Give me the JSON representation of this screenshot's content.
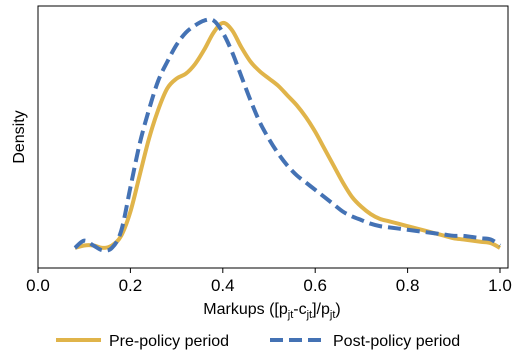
{
  "chart_data": {
    "type": "line",
    "title": "",
    "xlabel": "Markups ([p_jt-c_jt]/p_jt)",
    "xlabel_parts": {
      "main": "Markups ([p",
      "sub1": "jt",
      "mid1": "-c",
      "sub2": "jt",
      "mid2": "]/p",
      "sub3": "jt",
      "end": ")"
    },
    "ylabel": "Density",
    "xlim": [
      0.0,
      1.0
    ],
    "ylim": [
      0.0,
      1.05
    ],
    "xticks": [
      "0.0",
      "0.2",
      "0.4",
      "0.6",
      "0.8",
      "1.0"
    ],
    "y_tick_labels_shown": false,
    "grid": false,
    "legend_position": "bottom",
    "series": [
      {
        "name": "Pre-policy period",
        "color": "#E0B44A",
        "style": "solid",
        "points": [
          [
            0.08,
            0.05
          ],
          [
            0.1,
            0.06
          ],
          [
            0.12,
            0.06
          ],
          [
            0.14,
            0.05
          ],
          [
            0.16,
            0.06
          ],
          [
            0.18,
            0.1
          ],
          [
            0.2,
            0.2
          ],
          [
            0.22,
            0.35
          ],
          [
            0.24,
            0.5
          ],
          [
            0.26,
            0.62
          ],
          [
            0.28,
            0.71
          ],
          [
            0.3,
            0.75
          ],
          [
            0.32,
            0.77
          ],
          [
            0.34,
            0.81
          ],
          [
            0.36,
            0.87
          ],
          [
            0.38,
            0.94
          ],
          [
            0.4,
            0.98
          ],
          [
            0.42,
            0.95
          ],
          [
            0.44,
            0.88
          ],
          [
            0.46,
            0.82
          ],
          [
            0.48,
            0.78
          ],
          [
            0.5,
            0.75
          ],
          [
            0.52,
            0.72
          ],
          [
            0.54,
            0.68
          ],
          [
            0.56,
            0.64
          ],
          [
            0.58,
            0.59
          ],
          [
            0.6,
            0.53
          ],
          [
            0.62,
            0.46
          ],
          [
            0.64,
            0.39
          ],
          [
            0.66,
            0.32
          ],
          [
            0.68,
            0.26
          ],
          [
            0.7,
            0.22
          ],
          [
            0.72,
            0.19
          ],
          [
            0.74,
            0.17
          ],
          [
            0.76,
            0.16
          ],
          [
            0.78,
            0.15
          ],
          [
            0.8,
            0.14
          ],
          [
            0.82,
            0.13
          ],
          [
            0.84,
            0.12
          ],
          [
            0.86,
            0.11
          ],
          [
            0.88,
            0.1
          ],
          [
            0.9,
            0.09
          ],
          [
            0.92,
            0.085
          ],
          [
            0.94,
            0.08
          ],
          [
            0.96,
            0.075
          ],
          [
            0.98,
            0.07
          ],
          [
            1.0,
            0.05
          ]
        ]
      },
      {
        "name": "Post-policy period",
        "color": "#4472B4",
        "style": "dashed",
        "points": [
          [
            0.08,
            0.05
          ],
          [
            0.1,
            0.08
          ],
          [
            0.12,
            0.06
          ],
          [
            0.14,
            0.04
          ],
          [
            0.16,
            0.05
          ],
          [
            0.18,
            0.12
          ],
          [
            0.2,
            0.3
          ],
          [
            0.22,
            0.48
          ],
          [
            0.24,
            0.62
          ],
          [
            0.26,
            0.74
          ],
          [
            0.28,
            0.82
          ],
          [
            0.3,
            0.89
          ],
          [
            0.32,
            0.94
          ],
          [
            0.34,
            0.97
          ],
          [
            0.36,
            0.99
          ],
          [
            0.38,
            0.99
          ],
          [
            0.4,
            0.94
          ],
          [
            0.42,
            0.86
          ],
          [
            0.44,
            0.76
          ],
          [
            0.46,
            0.66
          ],
          [
            0.48,
            0.57
          ],
          [
            0.5,
            0.5
          ],
          [
            0.52,
            0.44
          ],
          [
            0.54,
            0.39
          ],
          [
            0.56,
            0.35
          ],
          [
            0.58,
            0.32
          ],
          [
            0.6,
            0.29
          ],
          [
            0.62,
            0.26
          ],
          [
            0.64,
            0.23
          ],
          [
            0.66,
            0.2
          ],
          [
            0.68,
            0.18
          ],
          [
            0.7,
            0.165
          ],
          [
            0.72,
            0.15
          ],
          [
            0.74,
            0.14
          ],
          [
            0.76,
            0.135
          ],
          [
            0.78,
            0.13
          ],
          [
            0.8,
            0.125
          ],
          [
            0.82,
            0.12
          ],
          [
            0.84,
            0.115
          ],
          [
            0.86,
            0.11
          ],
          [
            0.88,
            0.105
          ],
          [
            0.9,
            0.1
          ],
          [
            0.92,
            0.1
          ],
          [
            0.94,
            0.095
          ],
          [
            0.96,
            0.09
          ],
          [
            0.98,
            0.085
          ],
          [
            1.0,
            0.06
          ]
        ]
      }
    ]
  }
}
